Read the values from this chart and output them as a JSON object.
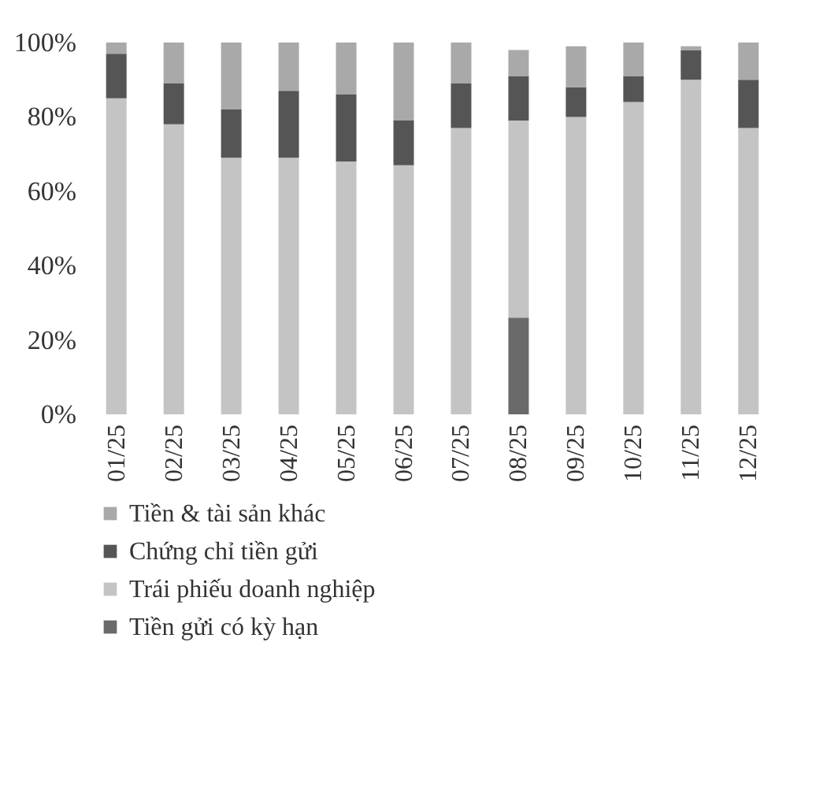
{
  "chart_data": {
    "type": "bar",
    "stacked": true,
    "categories": [
      "01/25",
      "02/25",
      "03/25",
      "04/25",
      "05/25",
      "06/25",
      "07/25",
      "08/25",
      "09/25",
      "10/25",
      "11/25",
      "12/25"
    ],
    "series": [
      {
        "name": "Tiền gửi có kỳ hạn",
        "color": "#6a6a6a",
        "values": [
          null,
          null,
          null,
          null,
          null,
          null,
          null,
          26,
          null,
          null,
          null,
          null
        ]
      },
      {
        "name": "Trái phiếu doanh nghiệp",
        "color": "#c4c4c4",
        "values": [
          85,
          78,
          69,
          69,
          68,
          67,
          77,
          53,
          80,
          84,
          90,
          77
        ]
      },
      {
        "name": "Chứng chỉ tiền gửi",
        "color": "#555555",
        "values": [
          12,
          11,
          13,
          18,
          18,
          12,
          12,
          12,
          8,
          7,
          8,
          13
        ]
      },
      {
        "name": "Tiền & tài sản khác",
        "color": "#a9a9a9",
        "values": [
          3,
          11,
          18,
          13,
          14,
          21,
          11,
          7,
          11,
          9,
          1,
          10
        ]
      }
    ],
    "ylim": [
      0,
      100
    ],
    "yticks": [
      {
        "value": 0,
        "label": "0%"
      },
      {
        "value": 20,
        "label": "20%"
      },
      {
        "value": 40,
        "label": "40%"
      },
      {
        "value": 60,
        "label": "60%"
      },
      {
        "value": 80,
        "label": "80%"
      },
      {
        "value": 100,
        "label": "100%"
      }
    ],
    "grid": false,
    "legend": "bottom"
  }
}
